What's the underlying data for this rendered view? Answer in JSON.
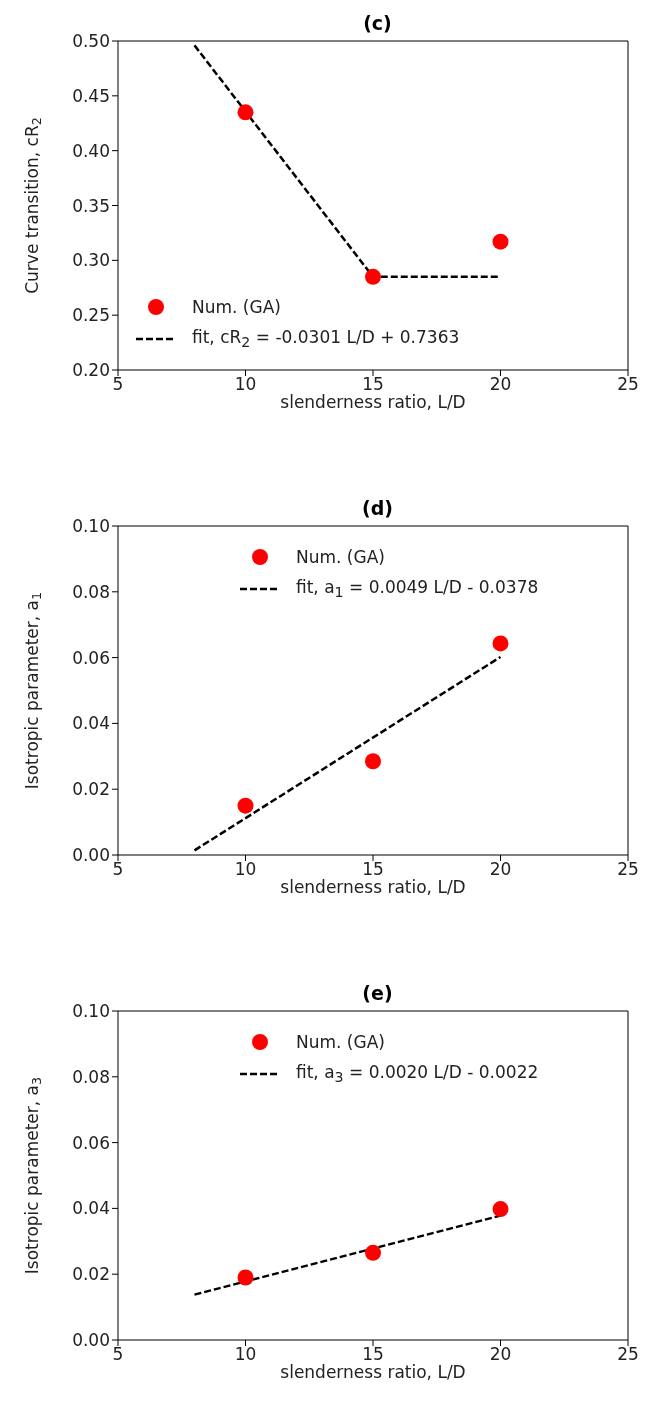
{
  "chart_data": [
    {
      "type": "scatter",
      "title": "(c)",
      "xlabel": "slenderness ratio, L/D",
      "ylabel": "Curve transition, cR$_{2}$",
      "xlim": [
        5,
        25
      ],
      "xticks": [
        5,
        10,
        15,
        20,
        25
      ],
      "ylim": [
        0.2,
        0.5
      ],
      "yticks": [
        {
          "value": 0.2,
          "label": "0.20"
        },
        {
          "value": 0.25,
          "label": "0.25"
        },
        {
          "value": 0.3,
          "label": "0.30"
        },
        {
          "value": 0.35,
          "label": "0.35"
        },
        {
          "value": 0.4,
          "label": "0.40"
        },
        {
          "value": 0.45,
          "label": "0.45"
        },
        {
          "value": 0.5,
          "label": "0.50"
        }
      ],
      "legend": "bottom left",
      "line_style": "dashed",
      "series": [
        {
          "name": "Num. (GA)",
          "type": "scatter",
          "marker": "circle",
          "color": "#ff0000",
          "x": [
            10,
            15,
            20
          ],
          "values": [
            0.435,
            0.285,
            0.317
          ]
        },
        {
          "name": "fit, cR$_{2}$ = -0.0301 L/D  + 0.7363",
          "type": "line",
          "marker": "none",
          "color": "#000000",
          "x": [
            8,
            15,
            20
          ],
          "values": [
            0.496,
            0.285,
            0.285
          ]
        }
      ]
    },
    {
      "type": "scatter",
      "title": "(d)",
      "xlabel": "slenderness ratio, L/D",
      "ylabel": "Isotropic parameter, a$_{1}$",
      "xlim": [
        5,
        25
      ],
      "xticks": [
        5,
        10,
        15,
        20,
        25
      ],
      "ylim": [
        0,
        0.1
      ],
      "yticks": [
        {
          "value": 0,
          "label": "0.00"
        },
        {
          "value": 0.02,
          "label": "0.02"
        },
        {
          "value": 0.04,
          "label": "0.04"
        },
        {
          "value": 0.06,
          "label": "0.06"
        },
        {
          "value": 0.08,
          "label": "0.08"
        },
        {
          "value": 0.1,
          "label": "0.10"
        }
      ],
      "legend": "top",
      "line_style": "dashed",
      "series": [
        {
          "name": "Num. (GA)",
          "type": "scatter",
          "marker": "circle",
          "color": "#ff0000",
          "x": [
            10,
            15,
            20
          ],
          "values": [
            0.015,
            0.0285,
            0.0643
          ]
        },
        {
          "name": "fit, a$_{1}$ = 0.0049 L/D - 0.0378",
          "type": "line",
          "marker": "none",
          "color": "#000000",
          "x": [
            8,
            20
          ],
          "values": [
            0.0014,
            0.0602
          ]
        }
      ]
    },
    {
      "type": "scatter",
      "title": "(e)",
      "xlabel": "slenderness ratio, L/D",
      "ylabel": "Isotropic parameter, a$_{3}$",
      "xlim": [
        5,
        25
      ],
      "xticks": [
        5,
        10,
        15,
        20,
        25
      ],
      "ylim": [
        0,
        0.1
      ],
      "yticks": [
        {
          "value": 0,
          "label": "0.00"
        },
        {
          "value": 0.02,
          "label": "0.02"
        },
        {
          "value": 0.04,
          "label": "0.04"
        },
        {
          "value": 0.06,
          "label": "0.06"
        },
        {
          "value": 0.08,
          "label": "0.08"
        },
        {
          "value": 0.1,
          "label": "0.10"
        }
      ],
      "legend": "top",
      "line_style": "dashed",
      "series": [
        {
          "name": "Num. (GA)",
          "type": "scatter",
          "marker": "circle",
          "color": "#ff0000",
          "x": [
            10,
            15,
            20
          ],
          "values": [
            0.019,
            0.0265,
            0.0398
          ]
        },
        {
          "name": "fit, a$_{3}$ = 0.0020 L/D  - 0.0022",
          "type": "line",
          "marker": "none",
          "color": "#000000",
          "x": [
            8,
            20
          ],
          "values": [
            0.0138,
            0.0378
          ]
        }
      ]
    }
  ]
}
